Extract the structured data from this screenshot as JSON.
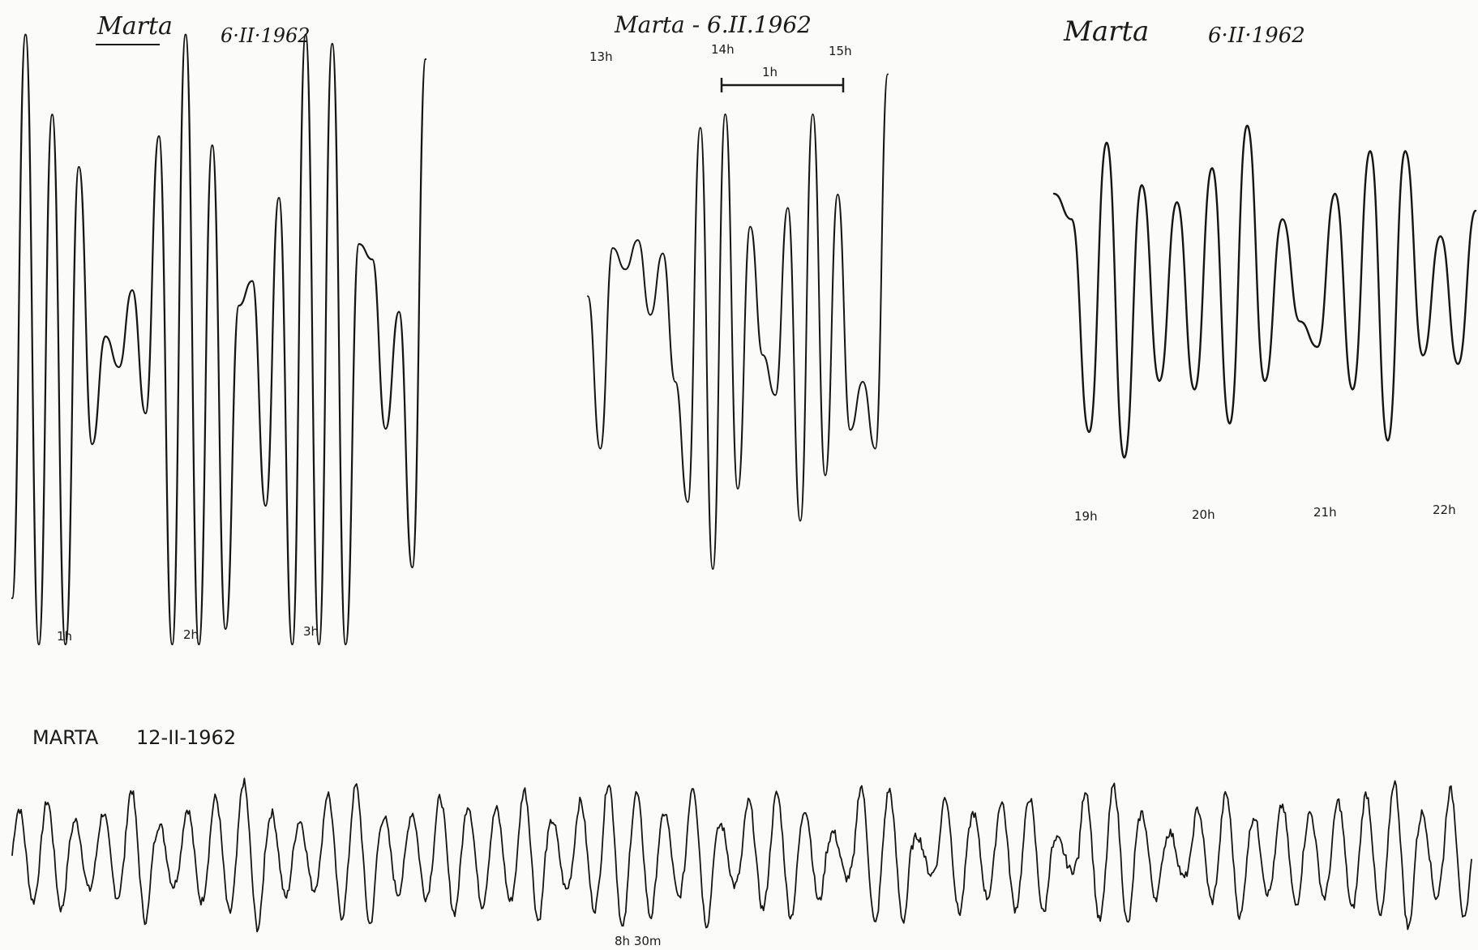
{
  "chart_data": [
    {
      "type": "line",
      "title": "Marta",
      "date": "6·II·1962",
      "tick_labels": [
        "1h",
        "2h",
        "3h"
      ],
      "y": [
        -0.85,
        0.98,
        -1.0,
        0.72,
        -1.0,
        0.55,
        -0.35,
        0.0,
        -0.1,
        0.15,
        -0.25,
        0.65,
        -1.0,
        0.98,
        -1.0,
        0.62,
        -0.95,
        0.1,
        0.18,
        -0.55,
        0.45,
        -1.0,
        0.98,
        -1.0,
        0.95,
        -1.0,
        0.3,
        0.25,
        -0.3,
        0.08,
        -0.75,
        0.9
      ]
    },
    {
      "type": "line",
      "title": "Marta - 6.II.1962",
      "tick_labels": [
        "13h",
        "14h",
        "15h"
      ],
      "scale_bar": "1h",
      "y": [
        0.12,
        -0.45,
        0.3,
        0.22,
        0.33,
        0.05,
        0.28,
        -0.2,
        -0.65,
        0.75,
        -0.9,
        0.8,
        -0.6,
        0.38,
        -0.1,
        -0.25,
        0.45,
        -0.72,
        0.8,
        -0.55,
        0.5,
        -0.38,
        -0.2,
        -0.45,
        0.95
      ]
    },
    {
      "type": "line",
      "title": "Marta",
      "date": "6·II·1962",
      "tick_labels": [
        "19h",
        "20h",
        "21h",
        "22h"
      ],
      "y": [
        0.6,
        0.45,
        -0.8,
        0.9,
        -0.95,
        0.65,
        -0.5,
        0.55,
        -0.55,
        0.75,
        -0.75,
        1.0,
        -0.5,
        0.45,
        -0.15,
        -0.3,
        0.6,
        -0.55,
        0.85,
        -0.85,
        0.85,
        -0.35,
        0.35,
        -0.4,
        0.5
      ]
    },
    {
      "type": "line",
      "title": "MARTA",
      "date": "12-II-1962",
      "tick_labels": [
        "8h 30m"
      ],
      "cycles": 52,
      "amplitudes": [
        0.6,
        0.7,
        0.45,
        0.55,
        0.85,
        0.4,
        0.6,
        0.75,
        0.95,
        0.55,
        0.45,
        0.8,
        0.9,
        0.5,
        0.55,
        0.75,
        0.65,
        0.6,
        0.85,
        0.45,
        0.7,
        0.95,
        0.8,
        0.55,
        0.9,
        0.4,
        0.7,
        0.8,
        0.6,
        0.3,
        0.9,
        0.85,
        0.25,
        0.75,
        0.55,
        0.7,
        0.75,
        0.2,
        0.85,
        0.9,
        0.55,
        0.3,
        0.6,
        0.8,
        0.5,
        0.65,
        0.55,
        0.7,
        0.8,
        0.95,
        0.55,
        0.85
      ]
    }
  ]
}
